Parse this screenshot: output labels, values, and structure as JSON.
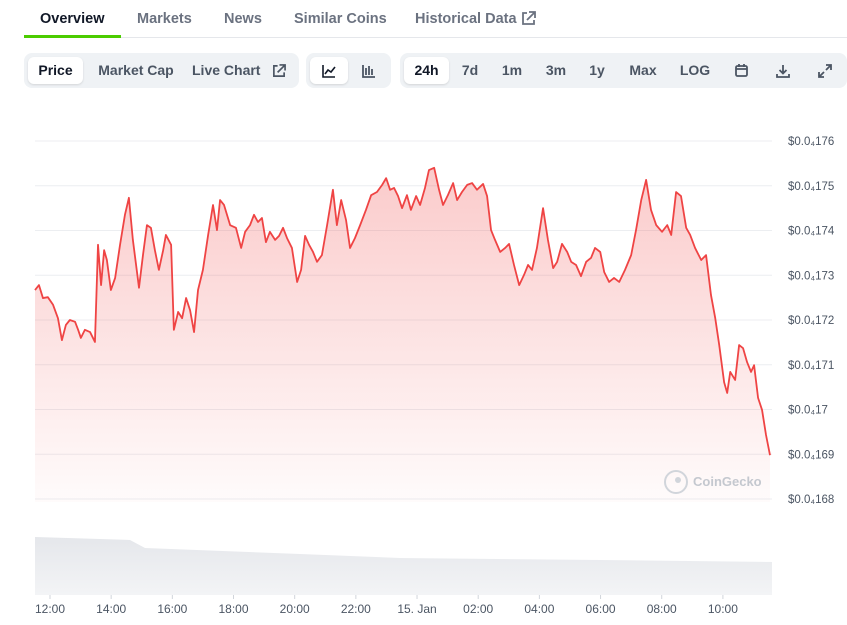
{
  "tabs": [
    "Overview",
    "Markets",
    "News",
    "Similar Coins",
    "Historical Data"
  ],
  "chart_views": [
    "Price",
    "Market Cap",
    "Live Chart"
  ],
  "ranges": [
    "24h",
    "7d",
    "1m",
    "3m",
    "1y",
    "Max",
    "LOG"
  ],
  "chart_data": {
    "type": "area",
    "watermark": "CoinGecko",
    "color": "#ef4444",
    "grid": true,
    "x": [
      11.51,
      11.64,
      11.77,
      11.93,
      12.1,
      12.26,
      12.39,
      12.52,
      12.65,
      12.82,
      12.92,
      13.01,
      13.14,
      13.31,
      13.47,
      13.57,
      13.67,
      13.77,
      13.86,
      13.99,
      14.13,
      14.29,
      14.45,
      14.58,
      14.71,
      14.91,
      15.04,
      15.17,
      15.3,
      15.43,
      15.56,
      15.7,
      15.79,
      15.96,
      16.05,
      16.19,
      16.32,
      16.45,
      16.58,
      16.71,
      16.84,
      17.0,
      17.17,
      17.33,
      17.46,
      17.56,
      17.69,
      17.89,
      18.08,
      18.25,
      18.38,
      18.54,
      18.67,
      18.8,
      18.93,
      19.06,
      19.19,
      19.36,
      19.49,
      19.62,
      19.75,
      19.91,
      20.08,
      20.21,
      20.34,
      20.47,
      20.6,
      20.73,
      20.89,
      21.06,
      21.25,
      21.38,
      21.52,
      21.68,
      21.81,
      21.97,
      22.14,
      22.33,
      22.5,
      22.69,
      22.86,
      22.99,
      23.12,
      23.25,
      23.38,
      23.51,
      23.67,
      23.8,
      23.97,
      24.1,
      24.26,
      24.39,
      24.56,
      24.72,
      24.85,
      25.01,
      25.18,
      25.31,
      25.47,
      25.64,
      25.8,
      25.96,
      26.16,
      26.29,
      26.42,
      26.55,
      26.72,
      26.88,
      27.01,
      27.17,
      27.34,
      27.5,
      27.63,
      27.76,
      27.92,
      28.12,
      28.28,
      28.45,
      28.58,
      28.74,
      28.91,
      29.04,
      29.2,
      29.36,
      29.53,
      29.69,
      29.82,
      29.99,
      30.12,
      30.28,
      30.44,
      30.61,
      30.8,
      31.0,
      31.16,
      31.33,
      31.49,
      31.65,
      31.82,
      32.01,
      32.18,
      32.31,
      32.47,
      32.63,
      32.8,
      32.93,
      33.09,
      33.29,
      33.45,
      33.61,
      33.75,
      33.88,
      34.04,
      34.14,
      34.24,
      34.4,
      34.53,
      34.66,
      34.79,
      34.92,
      35.02,
      35.15,
      35.28,
      35.41,
      35.54
    ],
    "values": [
      1.7267e-05,
      1.7278e-05,
      1.7249e-05,
      1.7251e-05,
      1.7234e-05,
      1.7204e-05,
      1.7155e-05,
      1.7189e-05,
      1.72e-05,
      1.7196e-05,
      1.7178e-05,
      1.716e-05,
      1.7178e-05,
      1.7173e-05,
      1.7151e-05,
      1.7368e-05,
      1.7278e-05,
      1.7356e-05,
      1.7334e-05,
      1.7267e-05,
      1.7294e-05,
      1.7368e-05,
      1.7435e-05,
      1.7473e-05,
      1.7379e-05,
      1.7272e-05,
      1.7345e-05,
      1.7412e-05,
      1.7406e-05,
      1.7356e-05,
      1.7312e-05,
      1.7356e-05,
      1.739e-05,
      1.7368e-05,
      1.7178e-05,
      1.7218e-05,
      1.7204e-05,
      1.7249e-05,
      1.7222e-05,
      1.7173e-05,
      1.7267e-05,
      1.7312e-05,
      1.739e-05,
      1.7457e-05,
      1.7401e-05,
      1.7468e-05,
      1.7457e-05,
      1.7412e-05,
      1.7406e-05,
      1.7361e-05,
      1.7397e-05,
      1.7412e-05,
      1.7435e-05,
      1.7419e-05,
      1.7428e-05,
      1.7374e-05,
      1.7397e-05,
      1.7379e-05,
      1.7388e-05,
      1.7406e-05,
      1.7383e-05,
      1.7361e-05,
      1.7285e-05,
      1.7312e-05,
      1.7388e-05,
      1.7368e-05,
      1.7352e-05,
      1.733e-05,
      1.7345e-05,
      1.7412e-05,
      1.7491e-05,
      1.7412e-05,
      1.7468e-05,
      1.7423e-05,
      1.7361e-05,
      1.7383e-05,
      1.7412e-05,
      1.7446e-05,
      1.7479e-05,
      1.7486e-05,
      1.7502e-05,
      1.7517e-05,
      1.7491e-05,
      1.7495e-05,
      1.7477e-05,
      1.745e-05,
      1.7479e-05,
      1.7446e-05,
      1.7477e-05,
      1.7457e-05,
      1.7495e-05,
      1.7535e-05,
      1.754e-05,
      1.7491e-05,
      1.7457e-05,
      1.7479e-05,
      1.7506e-05,
      1.7468e-05,
      1.7486e-05,
      1.7502e-05,
      1.7506e-05,
      1.7491e-05,
      1.7504e-05,
      1.7477e-05,
      1.7401e-05,
      1.7379e-05,
      1.7352e-05,
      1.7361e-05,
      1.737e-05,
      1.7323e-05,
      1.7278e-05,
      1.7301e-05,
      1.7323e-05,
      1.7312e-05,
      1.7361e-05,
      1.745e-05,
      1.7379e-05,
      1.7316e-05,
      1.733e-05,
      1.737e-05,
      1.7352e-05,
      1.733e-05,
      1.7323e-05,
      1.7298e-05,
      1.733e-05,
      1.7339e-05,
      1.7361e-05,
      1.7352e-05,
      1.7307e-05,
      1.7285e-05,
      1.7294e-05,
      1.7285e-05,
      1.7312e-05,
      1.7345e-05,
      1.7401e-05,
      1.7468e-05,
      1.7513e-05,
      1.7446e-05,
      1.7412e-05,
      1.7397e-05,
      1.7412e-05,
      1.739e-05,
      1.7486e-05,
      1.7477e-05,
      1.7406e-05,
      1.739e-05,
      1.7361e-05,
      1.7334e-05,
      1.7345e-05,
      1.7256e-05,
      1.7204e-05,
      1.7144e-05,
      1.7061e-05,
      1.7037e-05,
      1.7084e-05,
      1.7066e-05,
      1.7144e-05,
      1.7137e-05,
      1.7106e-05,
      1.7084e-05,
      1.7099e-05,
      1.7026e-05,
      1.6999e-05,
      1.6943e-05,
      1.6898e-05
    ],
    "xlim": [
      11.51,
      35.54
    ],
    "xticks": [
      {
        "value": 12,
        "label": "12:00"
      },
      {
        "value": 14,
        "label": "14:00"
      },
      {
        "value": 16,
        "label": "16:00"
      },
      {
        "value": 18,
        "label": "18:00"
      },
      {
        "value": 20,
        "label": "20:00"
      },
      {
        "value": 22,
        "label": "22:00"
      },
      {
        "value": 24,
        "label": "15. Jan"
      },
      {
        "value": 26,
        "label": "02:00"
      },
      {
        "value": 28,
        "label": "04:00"
      },
      {
        "value": 30,
        "label": "06:00"
      },
      {
        "value": 32,
        "label": "08:00"
      },
      {
        "value": 34,
        "label": "10:00"
      }
    ],
    "ylim": [
      1.68e-05,
      1.76e-05
    ],
    "yticks": [
      {
        "value": 1.68e-05,
        "label": "$0.0₄168"
      },
      {
        "value": 1.69e-05,
        "label": "$0.0₄169"
      },
      {
        "value": 1.7e-05,
        "label": "$0.0₄17"
      },
      {
        "value": 1.71e-05,
        "label": "$0.0₄171"
      },
      {
        "value": 1.72e-05,
        "label": "$0.0₄172"
      },
      {
        "value": 1.73e-05,
        "label": "$0.0₄173"
      },
      {
        "value": 1.74e-05,
        "label": "$0.0₄174"
      },
      {
        "value": 1.75e-05,
        "label": "$0.0₄175"
      },
      {
        "value": 1.76e-05,
        "label": "$0.0₄176"
      }
    ]
  }
}
